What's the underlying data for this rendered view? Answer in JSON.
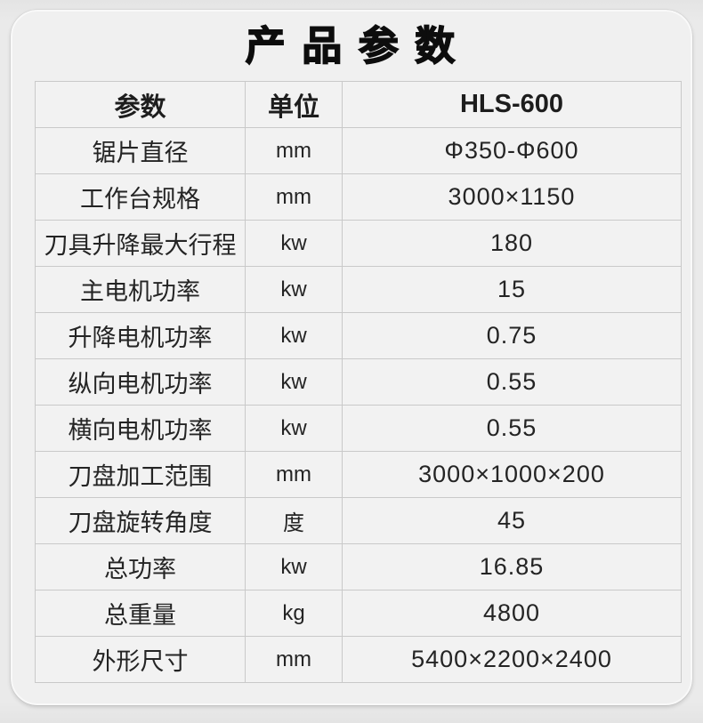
{
  "title": "产 品 参 数",
  "model": "HLS-600",
  "colors": {
    "page_bg": "#e8e8e8",
    "card_bg": "#f0f0f0",
    "cell_bg": "#f2f2f2",
    "border": "#c9c9c9",
    "text": "#242424",
    "title_text": "#0d0d0d"
  },
  "table": {
    "columns": [
      "参数",
      "单位",
      "HLS-600"
    ],
    "rows": [
      {
        "param": "锯片直径",
        "unit": "mm",
        "value": "Φ350-Φ600"
      },
      {
        "param": "工作台规格",
        "unit": "mm",
        "value": "3000×1150"
      },
      {
        "param": "刀具升降最大行程",
        "unit": "kw",
        "value": "180"
      },
      {
        "param": "主电机功率",
        "unit": "kw",
        "value": "15"
      },
      {
        "param": "升降电机功率",
        "unit": "kw",
        "value": "0.75"
      },
      {
        "param": "纵向电机功率",
        "unit": "kw",
        "value": "0.55"
      },
      {
        "param": "横向电机功率",
        "unit": "kw",
        "value": "0.55"
      },
      {
        "param": "刀盘加工范围",
        "unit": "mm",
        "value": "3000×1000×200"
      },
      {
        "param": "刀盘旋转角度",
        "unit": "度",
        "value": "45"
      },
      {
        "param": "总功率",
        "unit": "kw",
        "value": "16.85"
      },
      {
        "param": "总重量",
        "unit": "kg",
        "value": "4800"
      },
      {
        "param": "外形尺寸",
        "unit": "mm",
        "value": "5400×2200×2400"
      }
    ]
  }
}
